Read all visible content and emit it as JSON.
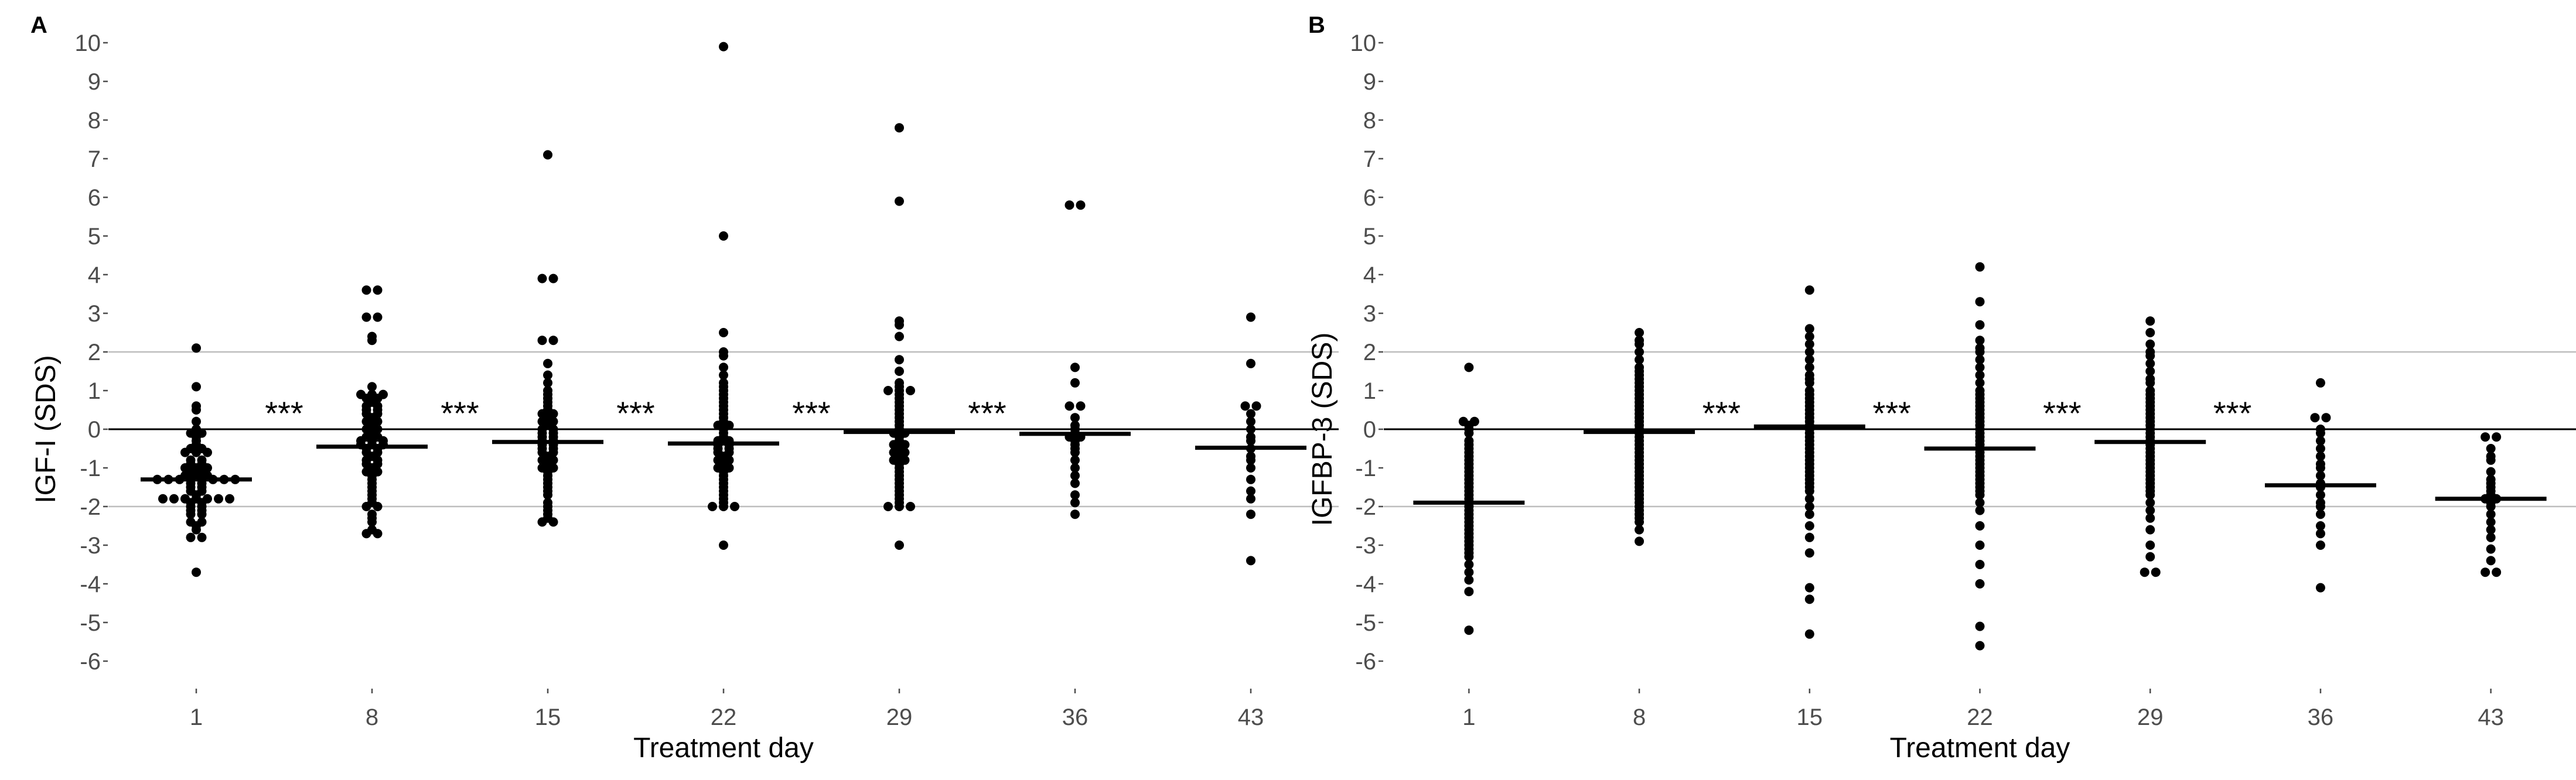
{
  "chart_data": [
    {
      "type": "dot-strip",
      "panel_label": "A",
      "title": "",
      "xlabel": "Treatment day",
      "ylabel": "IGF-I (SDS)",
      "ylim": [
        -7,
        10.5
      ],
      "y_ticks": [
        10,
        9,
        8,
        7,
        6,
        5,
        4,
        3,
        2,
        1,
        0,
        -1,
        -2,
        -3,
        -4,
        -5,
        -6
      ],
      "y_tick_labels": [
        "10",
        "9",
        "8",
        "7",
        "6",
        "5",
        "4",
        "3",
        "2",
        "1",
        "0",
        "-1",
        "-2",
        "-3",
        "-4",
        "-5",
        "-6"
      ],
      "categories": [
        "1",
        "8",
        "15",
        "22",
        "29",
        "36",
        "43"
      ],
      "reference_lines": [
        2,
        0,
        -2
      ],
      "significance_label": "***",
      "significance_between": [
        [
          0,
          1
        ],
        [
          1,
          2
        ],
        [
          2,
          3
        ],
        [
          3,
          4
        ],
        [
          4,
          5
        ]
      ],
      "medians": [
        -1.3,
        -0.45,
        -0.33,
        -0.37,
        -0.07,
        -0.12,
        -0.48
      ],
      "series": [
        {
          "name": "1",
          "values": [
            2.1,
            1.1,
            0.6,
            0.5,
            0.2,
            0.0,
            -0.1,
            -0.1,
            -0.2,
            -0.3,
            -0.4,
            -0.5,
            -0.5,
            -0.6,
            -0.6,
            -0.6,
            -0.8,
            -0.8,
            -0.9,
            -0.9,
            -1.0,
            -1.0,
            -1.0,
            -1.1,
            -1.1,
            -1.2,
            -1.2,
            -1.2,
            -1.3,
            -1.3,
            -1.3,
            -1.3,
            -1.3,
            -1.3,
            -1.3,
            -1.3,
            -1.4,
            -1.4,
            -1.5,
            -1.5,
            -1.6,
            -1.6,
            -1.7,
            -1.8,
            -1.8,
            -1.8,
            -1.8,
            -1.8,
            -1.8,
            -1.8,
            -1.9,
            -1.9,
            -2.0,
            -2.0,
            -2.1,
            -2.1,
            -2.2,
            -2.2,
            -2.4,
            -2.4,
            -2.5,
            -2.6,
            -2.8,
            -2.8,
            -3.7
          ]
        },
        {
          "name": "8",
          "values": [
            3.6,
            3.6,
            2.9,
            2.9,
            2.4,
            2.3,
            1.1,
            0.9,
            0.9,
            0.9,
            0.8,
            0.8,
            0.7,
            0.6,
            0.6,
            0.5,
            0.5,
            0.4,
            0.4,
            0.3,
            0.2,
            0.2,
            0.1,
            0.0,
            0.0,
            -0.1,
            -0.2,
            -0.2,
            -0.3,
            -0.3,
            -0.3,
            -0.4,
            -0.4,
            -0.4,
            -0.5,
            -0.5,
            -0.6,
            -0.6,
            -0.7,
            -0.8,
            -0.8,
            -0.9,
            -0.9,
            -1.0,
            -1.1,
            -1.1,
            -1.2,
            -1.3,
            -1.4,
            -1.5,
            -1.6,
            -1.7,
            -1.8,
            -1.9,
            -2.0,
            -2.0,
            -2.2,
            -2.3,
            -2.4,
            -2.6,
            -2.7,
            -2.7
          ]
        },
        {
          "name": "15",
          "values": [
            7.1,
            3.9,
            3.9,
            2.3,
            2.3,
            1.7,
            1.4,
            1.2,
            1.0,
            0.9,
            0.8,
            0.7,
            0.6,
            0.5,
            0.4,
            0.4,
            0.3,
            0.2,
            0.2,
            0.1,
            0.0,
            0.0,
            -0.1,
            -0.1,
            -0.2,
            -0.2,
            -0.3,
            -0.3,
            -0.4,
            -0.4,
            -0.5,
            -0.5,
            -0.6,
            -0.6,
            -0.7,
            -0.8,
            -0.8,
            -0.9,
            -1.0,
            -1.0,
            -1.1,
            -1.2,
            -1.3,
            -1.4,
            -1.5,
            -1.6,
            -1.7,
            -1.9,
            -2.0,
            -2.1,
            -2.2,
            -2.3,
            -2.4,
            -2.4
          ]
        },
        {
          "name": "22",
          "values": [
            9.9,
            5.0,
            2.5,
            2.0,
            1.9,
            1.6,
            1.4,
            1.2,
            1.1,
            1.0,
            0.9,
            0.8,
            0.7,
            0.6,
            0.5,
            0.4,
            0.3,
            0.2,
            0.1,
            0.1,
            0.0,
            -0.1,
            -0.2,
            -0.3,
            -0.3,
            -0.4,
            -0.4,
            -0.5,
            -0.5,
            -0.6,
            -0.6,
            -0.7,
            -0.8,
            -0.8,
            -0.9,
            -1.0,
            -1.0,
            -1.1,
            -1.2,
            -1.3,
            -1.4,
            -1.5,
            -1.6,
            -1.7,
            -1.8,
            -1.9,
            -2.0,
            -2.0,
            -2.0,
            -3.0
          ]
        },
        {
          "name": "29",
          "values": [
            7.8,
            5.9,
            2.8,
            2.7,
            2.4,
            1.8,
            1.5,
            1.2,
            1.1,
            1.0,
            1.0,
            1.0,
            0.9,
            0.8,
            0.7,
            0.6,
            0.5,
            0.4,
            0.3,
            0.2,
            0.1,
            0.0,
            -0.1,
            -0.1,
            -0.2,
            -0.3,
            -0.4,
            -0.4,
            -0.5,
            -0.6,
            -0.6,
            -0.7,
            -0.8,
            -0.8,
            -0.9,
            -1.0,
            -1.1,
            -1.2,
            -1.3,
            -1.4,
            -1.5,
            -1.6,
            -1.7,
            -1.8,
            -1.9,
            -2.0,
            -2.0,
            -2.0,
            -3.0
          ]
        },
        {
          "name": "36",
          "values": [
            5.8,
            5.8,
            1.6,
            1.2,
            0.6,
            0.6,
            0.3,
            0.1,
            0.0,
            -0.1,
            -0.2,
            -0.2,
            -0.3,
            -0.4,
            -0.5,
            -0.6,
            -0.8,
            -1.0,
            -1.2,
            -1.4,
            -1.7,
            -1.9,
            -2.2
          ]
        },
        {
          "name": "43",
          "values": [
            2.9,
            1.7,
            0.6,
            0.6,
            0.4,
            0.2,
            0.0,
            -0.2,
            -0.3,
            -0.5,
            -0.7,
            -0.8,
            -1.0,
            -1.3,
            -1.6,
            -1.8,
            -2.2,
            -3.4
          ]
        }
      ]
    },
    {
      "type": "dot-strip",
      "panel_label": "B",
      "title": "",
      "xlabel": "Treatment day",
      "ylabel": "IGFBP-3 (SDS)",
      "ylim": [
        -7,
        10.5
      ],
      "y_ticks": [
        10,
        9,
        8,
        7,
        6,
        5,
        4,
        3,
        2,
        1,
        0,
        -1,
        -2,
        -3,
        -4,
        -5,
        -6
      ],
      "y_tick_labels": [
        "10",
        "9",
        "8",
        "7",
        "6",
        "5",
        "4",
        "3",
        "2",
        "1",
        "0",
        "-1",
        "-2",
        "-3",
        "-4",
        "-5",
        "-6"
      ],
      "categories": [
        "1",
        "8",
        "15",
        "22",
        "29",
        "36",
        "43"
      ],
      "reference_lines": [
        2,
        0,
        -2
      ],
      "significance_label": "***",
      "significance_between": [
        [
          1,
          2
        ],
        [
          2,
          3
        ],
        [
          3,
          4
        ],
        [
          4,
          5
        ]
      ],
      "medians": [
        -1.9,
        -0.07,
        0.07,
        -0.5,
        -0.33,
        -1.45,
        -1.8
      ],
      "series": [
        {
          "name": "1",
          "values": [
            1.6,
            0.2,
            0.2,
            0.1,
            0.0,
            -0.1,
            -0.3,
            -0.4,
            -0.5,
            -0.6,
            -0.7,
            -0.8,
            -0.9,
            -1.0,
            -1.1,
            -1.2,
            -1.3,
            -1.4,
            -1.5,
            -1.6,
            -1.7,
            -1.8,
            -1.9,
            -2.0,
            -2.1,
            -2.2,
            -2.3,
            -2.4,
            -2.5,
            -2.6,
            -2.7,
            -2.8,
            -2.9,
            -3.0,
            -3.1,
            -3.2,
            -3.3,
            -3.5,
            -3.7,
            -3.9,
            -4.2,
            -5.2
          ]
        },
        {
          "name": "8",
          "values": [
            2.5,
            2.3,
            2.2,
            2.0,
            1.8,
            1.6,
            1.5,
            1.4,
            1.3,
            1.2,
            1.1,
            1.0,
            0.9,
            0.8,
            0.7,
            0.6,
            0.5,
            0.4,
            0.3,
            0.2,
            0.1,
            0.0,
            -0.1,
            -0.2,
            -0.3,
            -0.4,
            -0.5,
            -0.6,
            -0.7,
            -0.8,
            -0.9,
            -1.0,
            -1.1,
            -1.2,
            -1.3,
            -1.4,
            -1.5,
            -1.6,
            -1.7,
            -1.8,
            -1.9,
            -2.0,
            -2.1,
            -2.2,
            -2.3,
            -2.4,
            -2.6,
            -2.9
          ]
        },
        {
          "name": "15",
          "values": [
            3.6,
            2.6,
            2.4,
            2.2,
            2.0,
            1.8,
            1.6,
            1.4,
            1.3,
            1.2,
            1.0,
            0.9,
            0.8,
            0.7,
            0.6,
            0.5,
            0.4,
            0.3,
            0.2,
            0.1,
            0.0,
            -0.1,
            -0.2,
            -0.3,
            -0.4,
            -0.5,
            -0.6,
            -0.7,
            -0.8,
            -0.9,
            -1.0,
            -1.1,
            -1.2,
            -1.3,
            -1.4,
            -1.5,
            -1.6,
            -1.8,
            -2.0,
            -2.2,
            -2.5,
            -2.8,
            -3.2,
            -4.1,
            -4.4,
            -5.3
          ]
        },
        {
          "name": "22",
          "values": [
            4.2,
            3.3,
            2.7,
            2.3,
            2.1,
            2.0,
            1.8,
            1.6,
            1.4,
            1.2,
            1.0,
            0.9,
            0.8,
            0.7,
            0.6,
            0.5,
            0.4,
            0.3,
            0.2,
            0.1,
            0.0,
            -0.1,
            -0.2,
            -0.3,
            -0.4,
            -0.5,
            -0.6,
            -0.7,
            -0.8,
            -0.9,
            -1.0,
            -1.1,
            -1.2,
            -1.3,
            -1.4,
            -1.5,
            -1.6,
            -1.7,
            -1.9,
            -2.1,
            -2.5,
            -3.0,
            -3.5,
            -4.0,
            -5.1,
            -5.6
          ]
        },
        {
          "name": "29",
          "values": [
            2.8,
            2.5,
            2.2,
            2.0,
            1.9,
            1.7,
            1.5,
            1.3,
            1.2,
            1.0,
            0.9,
            0.8,
            0.7,
            0.6,
            0.5,
            0.4,
            0.3,
            0.2,
            0.1,
            0.0,
            -0.1,
            -0.2,
            -0.3,
            -0.4,
            -0.5,
            -0.6,
            -0.7,
            -0.8,
            -0.9,
            -1.0,
            -1.1,
            -1.2,
            -1.3,
            -1.4,
            -1.5,
            -1.6,
            -1.7,
            -1.9,
            -2.1,
            -2.3,
            -2.6,
            -3.0,
            -3.3,
            -3.7,
            -3.7
          ]
        },
        {
          "name": "36",
          "values": [
            1.2,
            0.3,
            0.3,
            0.0,
            -0.1,
            -0.3,
            -0.5,
            -0.7,
            -0.9,
            -1.0,
            -1.2,
            -1.4,
            -1.5,
            -1.7,
            -1.9,
            -2.0,
            -2.2,
            -2.5,
            -2.7,
            -3.0,
            -4.1
          ]
        },
        {
          "name": "43",
          "values": [
            -0.2,
            -0.2,
            -0.5,
            -0.7,
            -0.8,
            -1.1,
            -1.3,
            -1.4,
            -1.5,
            -1.6,
            -1.7,
            -1.8,
            -1.8,
            -1.9,
            -2.0,
            -2.2,
            -2.4,
            -2.6,
            -2.8,
            -3.1,
            -3.4,
            -3.7,
            -3.7
          ]
        }
      ]
    }
  ]
}
